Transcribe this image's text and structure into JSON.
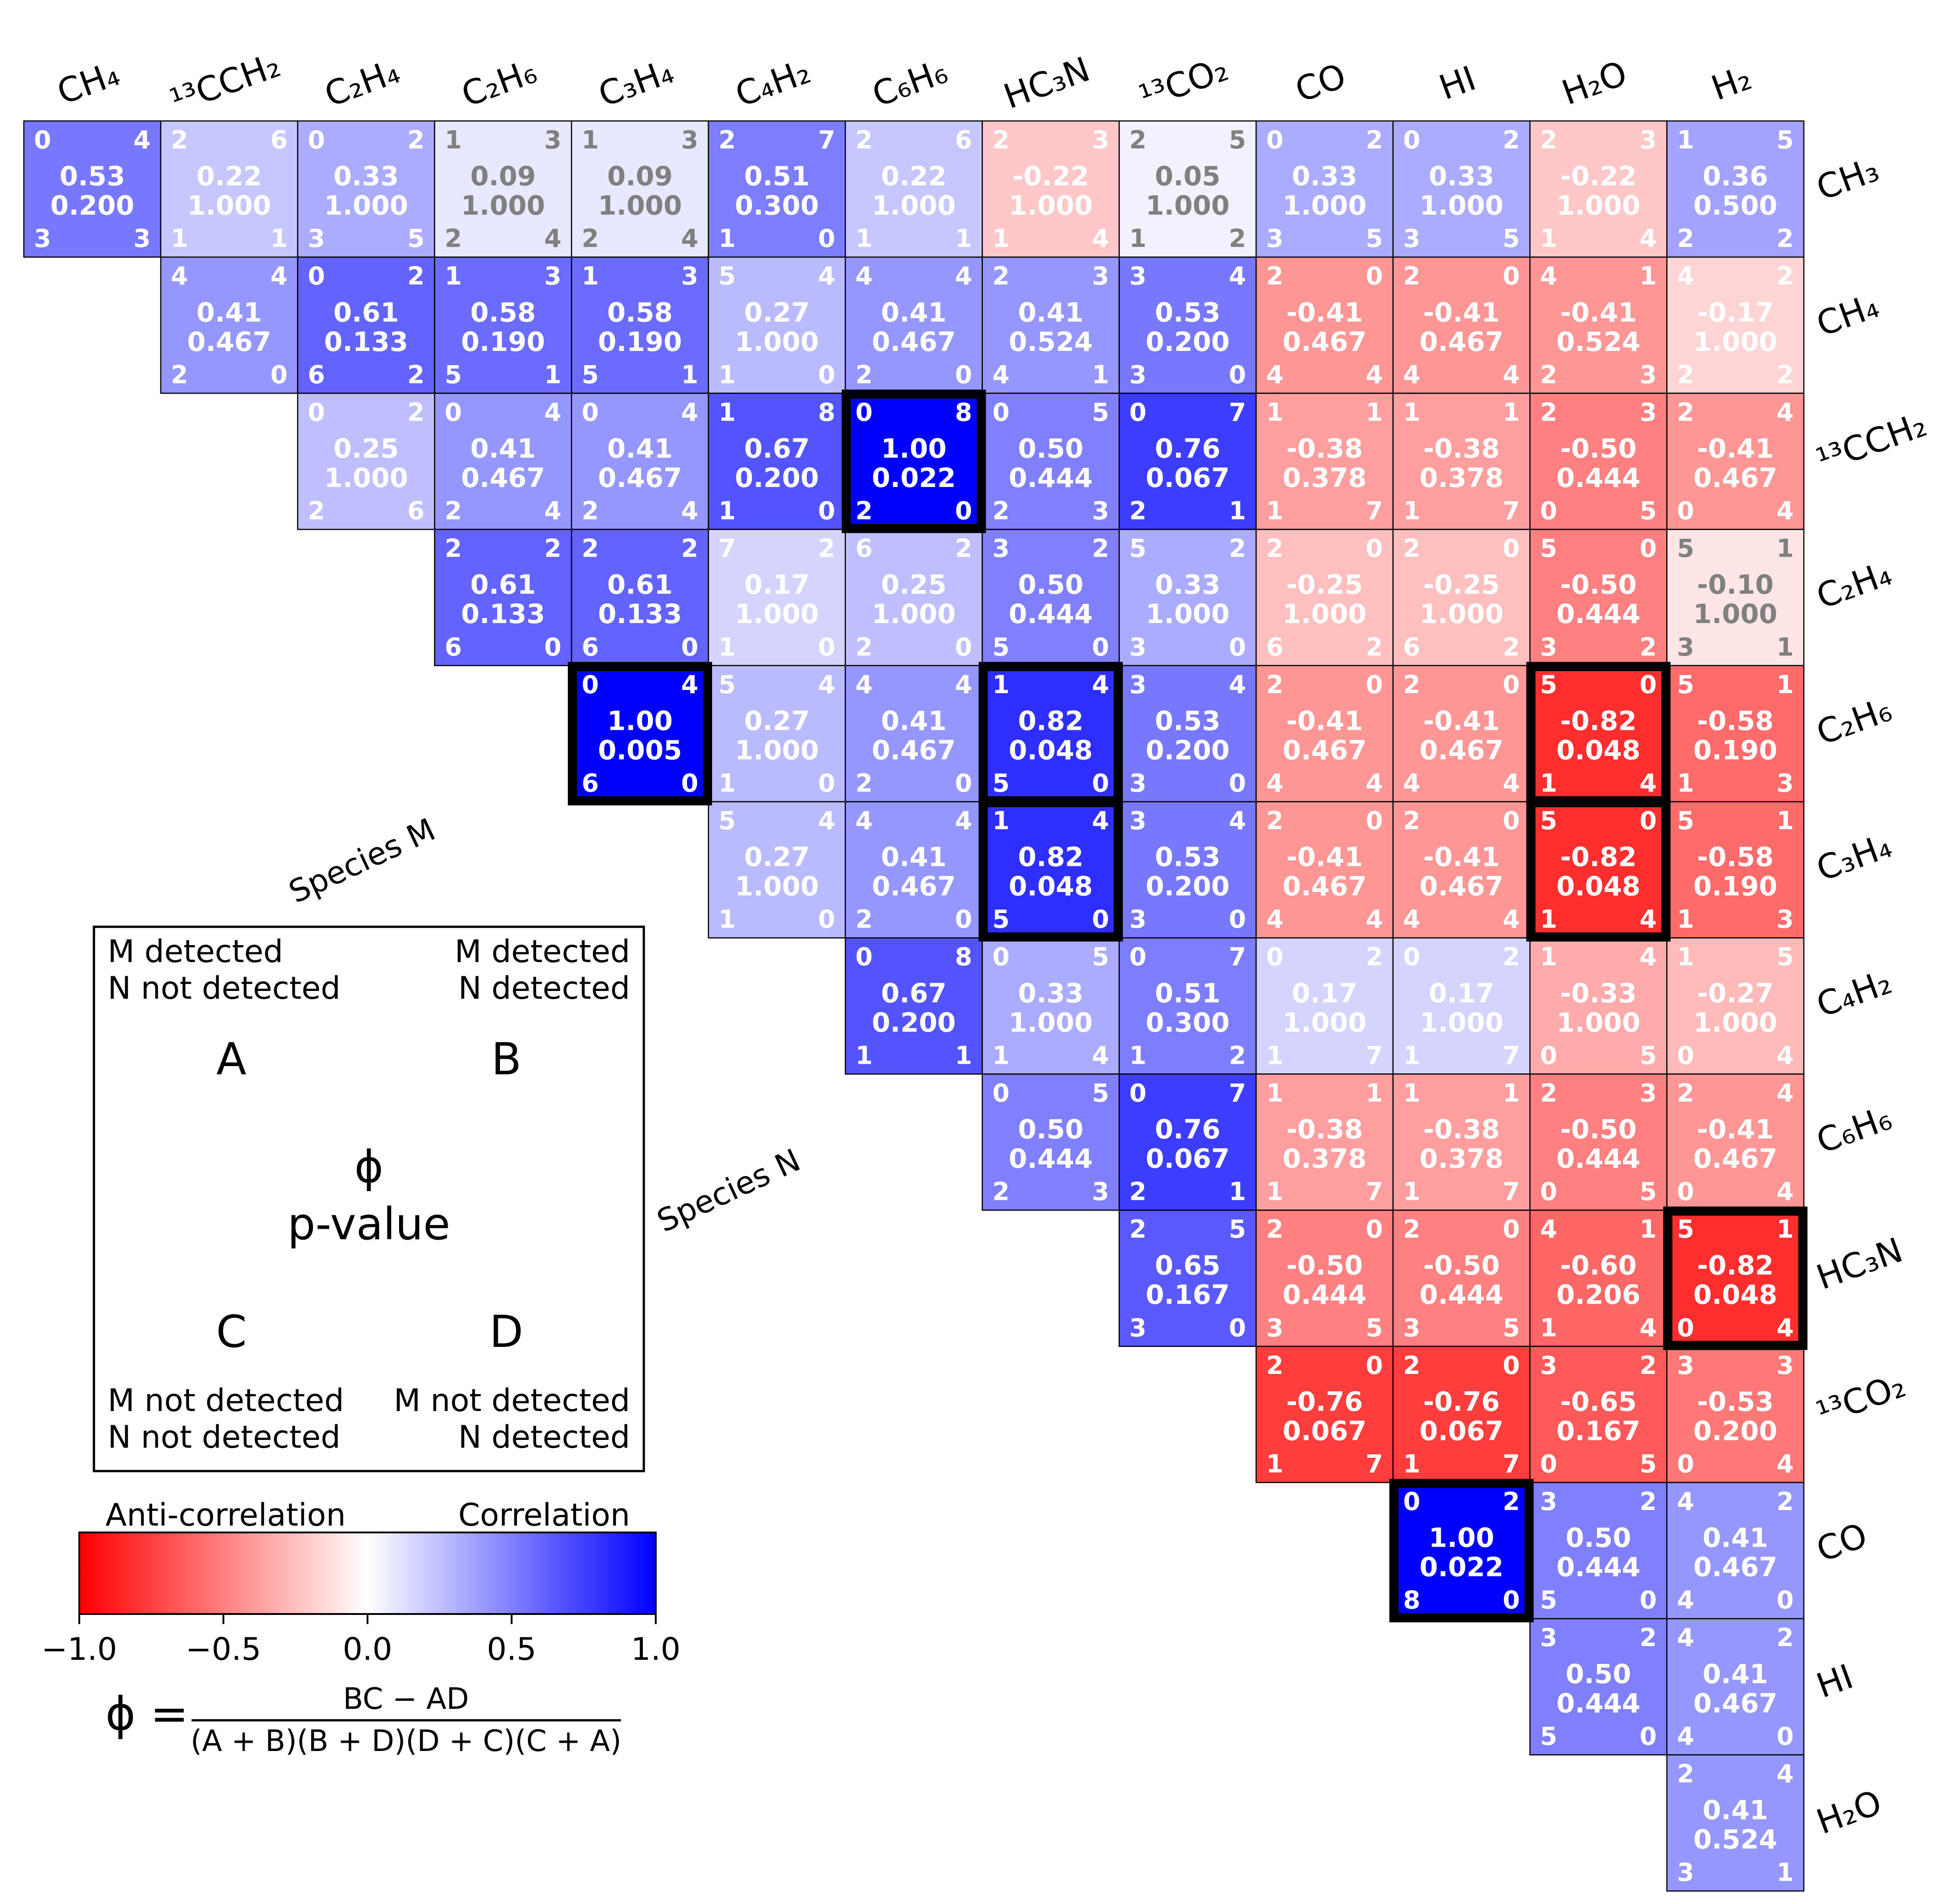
{
  "chart_data": {
    "type": "heatmap",
    "columns": [
      "CH₄",
      "¹³CCH₂",
      "C₂H₄",
      "C₂H₆",
      "C₃H₄",
      "C₄H₂",
      "C₆H₆",
      "HC₃N",
      "¹³CO₂",
      "CO",
      "HI",
      "H₂O",
      "H₂"
    ],
    "rows": [
      "CH₃",
      "CH₄",
      "¹³CCH₂",
      "C₂H₄",
      "C₂H₆",
      "C₃H₄",
      "C₄H₂",
      "C₆H₆",
      "HC₃N",
      "¹³CO₂",
      "CO",
      "HI",
      "H₂O"
    ],
    "cells": [
      [
        {
          "phi": "0.53",
          "p": "0.200",
          "a": "0",
          "b": "4",
          "c": "3",
          "d": "3"
        },
        {
          "phi": "0.22",
          "p": "1.000",
          "a": "2",
          "b": "6",
          "c": "1",
          "d": "1"
        },
        {
          "phi": "0.33",
          "p": "1.000",
          "a": "0",
          "b": "2",
          "c": "3",
          "d": "5"
        },
        {
          "phi": "0.09",
          "p": "1.000",
          "a": "1",
          "b": "3",
          "c": "2",
          "d": "4"
        },
        {
          "phi": "0.09",
          "p": "1.000",
          "a": "1",
          "b": "3",
          "c": "2",
          "d": "4"
        },
        {
          "phi": "0.51",
          "p": "0.300",
          "a": "2",
          "b": "7",
          "c": "1",
          "d": "0"
        },
        {
          "phi": "0.22",
          "p": "1.000",
          "a": "2",
          "b": "6",
          "c": "1",
          "d": "1"
        },
        {
          "phi": "-0.22",
          "p": "1.000",
          "a": "2",
          "b": "3",
          "c": "1",
          "d": "4"
        },
        {
          "phi": "0.05",
          "p": "1.000",
          "a": "2",
          "b": "5",
          "c": "1",
          "d": "2"
        },
        {
          "phi": "0.33",
          "p": "1.000",
          "a": "0",
          "b": "2",
          "c": "3",
          "d": "5"
        },
        {
          "phi": "0.33",
          "p": "1.000",
          "a": "0",
          "b": "2",
          "c": "3",
          "d": "5"
        },
        {
          "phi": "-0.22",
          "p": "1.000",
          "a": "2",
          "b": "3",
          "c": "1",
          "d": "4"
        },
        {
          "phi": "0.36",
          "p": "0.500",
          "a": "1",
          "b": "5",
          "c": "2",
          "d": "2"
        }
      ],
      [
        null,
        {
          "phi": "0.41",
          "p": "0.467",
          "a": "4",
          "b": "4",
          "c": "2",
          "d": "0"
        },
        {
          "phi": "0.61",
          "p": "0.133",
          "a": "0",
          "b": "2",
          "c": "6",
          "d": "2"
        },
        {
          "phi": "0.58",
          "p": "0.190",
          "a": "1",
          "b": "3",
          "c": "5",
          "d": "1"
        },
        {
          "phi": "0.58",
          "p": "0.190",
          "a": "1",
          "b": "3",
          "c": "5",
          "d": "1"
        },
        {
          "phi": "0.27",
          "p": "1.000",
          "a": "5",
          "b": "4",
          "c": "1",
          "d": "0"
        },
        {
          "phi": "0.41",
          "p": "0.467",
          "a": "4",
          "b": "4",
          "c": "2",
          "d": "0"
        },
        {
          "phi": "0.41",
          "p": "0.524",
          "a": "2",
          "b": "3",
          "c": "4",
          "d": "1"
        },
        {
          "phi": "0.53",
          "p": "0.200",
          "a": "3",
          "b": "4",
          "c": "3",
          "d": "0"
        },
        {
          "phi": "-0.41",
          "p": "0.467",
          "a": "2",
          "b": "0",
          "c": "4",
          "d": "4"
        },
        {
          "phi": "-0.41",
          "p": "0.467",
          "a": "2",
          "b": "0",
          "c": "4",
          "d": "4"
        },
        {
          "phi": "-0.41",
          "p": "0.524",
          "a": "4",
          "b": "1",
          "c": "2",
          "d": "3"
        },
        {
          "phi": "-0.17",
          "p": "1.000",
          "a": "4",
          "b": "2",
          "c": "2",
          "d": "2"
        }
      ],
      [
        null,
        null,
        {
          "phi": "0.25",
          "p": "1.000",
          "a": "0",
          "b": "2",
          "c": "2",
          "d": "6"
        },
        {
          "phi": "0.41",
          "p": "0.467",
          "a": "0",
          "b": "4",
          "c": "2",
          "d": "4"
        },
        {
          "phi": "0.41",
          "p": "0.467",
          "a": "0",
          "b": "4",
          "c": "2",
          "d": "4"
        },
        {
          "phi": "0.67",
          "p": "0.200",
          "a": "1",
          "b": "8",
          "c": "1",
          "d": "0"
        },
        {
          "phi": "1.00",
          "p": "0.022",
          "a": "0",
          "b": "8",
          "c": "2",
          "d": "0",
          "sig": true
        },
        {
          "phi": "0.50",
          "p": "0.444",
          "a": "0",
          "b": "5",
          "c": "2",
          "d": "3"
        },
        {
          "phi": "0.76",
          "p": "0.067",
          "a": "0",
          "b": "7",
          "c": "2",
          "d": "1"
        },
        {
          "phi": "-0.38",
          "p": "0.378",
          "a": "1",
          "b": "1",
          "c": "1",
          "d": "7"
        },
        {
          "phi": "-0.38",
          "p": "0.378",
          "a": "1",
          "b": "1",
          "c": "1",
          "d": "7"
        },
        {
          "phi": "-0.50",
          "p": "0.444",
          "a": "2",
          "b": "3",
          "c": "0",
          "d": "5"
        },
        {
          "phi": "-0.41",
          "p": "0.467",
          "a": "2",
          "b": "4",
          "c": "0",
          "d": "4"
        }
      ],
      [
        null,
        null,
        null,
        {
          "phi": "0.61",
          "p": "0.133",
          "a": "2",
          "b": "2",
          "c": "6",
          "d": "0"
        },
        {
          "phi": "0.61",
          "p": "0.133",
          "a": "2",
          "b": "2",
          "c": "6",
          "d": "0"
        },
        {
          "phi": "0.17",
          "p": "1.000",
          "a": "7",
          "b": "2",
          "c": "1",
          "d": "0"
        },
        {
          "phi": "0.25",
          "p": "1.000",
          "a": "6",
          "b": "2",
          "c": "2",
          "d": "0"
        },
        {
          "phi": "0.50",
          "p": "0.444",
          "a": "3",
          "b": "2",
          "c": "5",
          "d": "0"
        },
        {
          "phi": "0.33",
          "p": "1.000",
          "a": "5",
          "b": "2",
          "c": "3",
          "d": "0"
        },
        {
          "phi": "-0.25",
          "p": "1.000",
          "a": "2",
          "b": "0",
          "c": "6",
          "d": "2"
        },
        {
          "phi": "-0.25",
          "p": "1.000",
          "a": "2",
          "b": "0",
          "c": "6",
          "d": "2"
        },
        {
          "phi": "-0.50",
          "p": "0.444",
          "a": "5",
          "b": "0",
          "c": "3",
          "d": "2"
        },
        {
          "phi": "-0.10",
          "p": "1.000",
          "a": "5",
          "b": "1",
          "c": "3",
          "d": "1"
        }
      ],
      [
        null,
        null,
        null,
        null,
        {
          "phi": "1.00",
          "p": "0.005",
          "a": "0",
          "b": "4",
          "c": "6",
          "d": "0",
          "sig": true
        },
        {
          "phi": "0.27",
          "p": "1.000",
          "a": "5",
          "b": "4",
          "c": "1",
          "d": "0"
        },
        {
          "phi": "0.41",
          "p": "0.467",
          "a": "4",
          "b": "4",
          "c": "2",
          "d": "0"
        },
        {
          "phi": "0.82",
          "p": "0.048",
          "a": "1",
          "b": "4",
          "c": "5",
          "d": "0",
          "sig": true
        },
        {
          "phi": "0.53",
          "p": "0.200",
          "a": "3",
          "b": "4",
          "c": "3",
          "d": "0"
        },
        {
          "phi": "-0.41",
          "p": "0.467",
          "a": "2",
          "b": "0",
          "c": "4",
          "d": "4"
        },
        {
          "phi": "-0.41",
          "p": "0.467",
          "a": "2",
          "b": "0",
          "c": "4",
          "d": "4"
        },
        {
          "phi": "-0.82",
          "p": "0.048",
          "a": "5",
          "b": "0",
          "c": "1",
          "d": "4",
          "sig": true
        },
        {
          "phi": "-0.58",
          "p": "0.190",
          "a": "5",
          "b": "1",
          "c": "1",
          "d": "3"
        }
      ],
      [
        null,
        null,
        null,
        null,
        null,
        {
          "phi": "0.27",
          "p": "1.000",
          "a": "5",
          "b": "4",
          "c": "1",
          "d": "0"
        },
        {
          "phi": "0.41",
          "p": "0.467",
          "a": "4",
          "b": "4",
          "c": "2",
          "d": "0"
        },
        {
          "phi": "0.82",
          "p": "0.048",
          "a": "1",
          "b": "4",
          "c": "5",
          "d": "0",
          "sig": true
        },
        {
          "phi": "0.53",
          "p": "0.200",
          "a": "3",
          "b": "4",
          "c": "3",
          "d": "0"
        },
        {
          "phi": "-0.41",
          "p": "0.467",
          "a": "2",
          "b": "0",
          "c": "4",
          "d": "4"
        },
        {
          "phi": "-0.41",
          "p": "0.467",
          "a": "2",
          "b": "0",
          "c": "4",
          "d": "4"
        },
        {
          "phi": "-0.82",
          "p": "0.048",
          "a": "5",
          "b": "0",
          "c": "1",
          "d": "4",
          "sig": true
        },
        {
          "phi": "-0.58",
          "p": "0.190",
          "a": "5",
          "b": "1",
          "c": "1",
          "d": "3"
        }
      ],
      [
        null,
        null,
        null,
        null,
        null,
        null,
        {
          "phi": "0.67",
          "p": "0.200",
          "a": "0",
          "b": "8",
          "c": "1",
          "d": "1"
        },
        {
          "phi": "0.33",
          "p": "1.000",
          "a": "0",
          "b": "5",
          "c": "1",
          "d": "4"
        },
        {
          "phi": "0.51",
          "p": "0.300",
          "a": "0",
          "b": "7",
          "c": "1",
          "d": "2"
        },
        {
          "phi": "0.17",
          "p": "1.000",
          "a": "0",
          "b": "2",
          "c": "1",
          "d": "7"
        },
        {
          "phi": "0.17",
          "p": "1.000",
          "a": "0",
          "b": "2",
          "c": "1",
          "d": "7"
        },
        {
          "phi": "-0.33",
          "p": "1.000",
          "a": "1",
          "b": "4",
          "c": "0",
          "d": "5"
        },
        {
          "phi": "-0.27",
          "p": "1.000",
          "a": "1",
          "b": "5",
          "c": "0",
          "d": "4"
        }
      ],
      [
        null,
        null,
        null,
        null,
        null,
        null,
        null,
        {
          "phi": "0.50",
          "p": "0.444",
          "a": "0",
          "b": "5",
          "c": "2",
          "d": "3"
        },
        {
          "phi": "0.76",
          "p": "0.067",
          "a": "0",
          "b": "7",
          "c": "2",
          "d": "1"
        },
        {
          "phi": "-0.38",
          "p": "0.378",
          "a": "1",
          "b": "1",
          "c": "1",
          "d": "7"
        },
        {
          "phi": "-0.38",
          "p": "0.378",
          "a": "1",
          "b": "1",
          "c": "1",
          "d": "7"
        },
        {
          "phi": "-0.50",
          "p": "0.444",
          "a": "2",
          "b": "3",
          "c": "0",
          "d": "5"
        },
        {
          "phi": "-0.41",
          "p": "0.467",
          "a": "2",
          "b": "4",
          "c": "0",
          "d": "4"
        }
      ],
      [
        null,
        null,
        null,
        null,
        null,
        null,
        null,
        null,
        {
          "phi": "0.65",
          "p": "0.167",
          "a": "2",
          "b": "5",
          "c": "3",
          "d": "0"
        },
        {
          "phi": "-0.50",
          "p": "0.444",
          "a": "2",
          "b": "0",
          "c": "3",
          "d": "5"
        },
        {
          "phi": "-0.50",
          "p": "0.444",
          "a": "2",
          "b": "0",
          "c": "3",
          "d": "5"
        },
        {
          "phi": "-0.60",
          "p": "0.206",
          "a": "4",
          "b": "1",
          "c": "1",
          "d": "4"
        },
        {
          "phi": "-0.82",
          "p": "0.048",
          "a": "5",
          "b": "1",
          "c": "0",
          "d": "4",
          "sig": true
        }
      ],
      [
        null,
        null,
        null,
        null,
        null,
        null,
        null,
        null,
        null,
        {
          "phi": "-0.76",
          "p": "0.067",
          "a": "2",
          "b": "0",
          "c": "1",
          "d": "7"
        },
        {
          "phi": "-0.76",
          "p": "0.067",
          "a": "2",
          "b": "0",
          "c": "1",
          "d": "7"
        },
        {
          "phi": "-0.65",
          "p": "0.167",
          "a": "3",
          "b": "2",
          "c": "0",
          "d": "5"
        },
        {
          "phi": "-0.53",
          "p": "0.200",
          "a": "3",
          "b": "3",
          "c": "0",
          "d": "4"
        }
      ],
      [
        null,
        null,
        null,
        null,
        null,
        null,
        null,
        null,
        null,
        null,
        {
          "phi": "1.00",
          "p": "0.022",
          "a": "0",
          "b": "2",
          "c": "8",
          "d": "0",
          "sig": true
        },
        {
          "phi": "0.50",
          "p": "0.444",
          "a": "3",
          "b": "2",
          "c": "5",
          "d": "0"
        },
        {
          "phi": "0.41",
          "p": "0.467",
          "a": "4",
          "b": "2",
          "c": "4",
          "d": "0"
        }
      ],
      [
        null,
        null,
        null,
        null,
        null,
        null,
        null,
        null,
        null,
        null,
        null,
        {
          "phi": "0.50",
          "p": "0.444",
          "a": "3",
          "b": "2",
          "c": "5",
          "d": "0"
        },
        {
          "phi": "0.41",
          "p": "0.467",
          "a": "4",
          "b": "2",
          "c": "4",
          "d": "0"
        }
      ],
      [
        null,
        null,
        null,
        null,
        null,
        null,
        null,
        null,
        null,
        null,
        null,
        null,
        {
          "phi": "0.41",
          "p": "0.524",
          "a": "2",
          "b": "4",
          "c": "3",
          "d": "1"
        }
      ]
    ],
    "colormap": {
      "min": -1.0,
      "max": 1.0,
      "negative_color": "#ff0000",
      "mid_color": "#ffffff",
      "positive_color": "#0000ff"
    },
    "colorbar_ticks": [
      "−1.0",
      "−0.5",
      "0.0",
      "0.5",
      "1.0"
    ],
    "colorbar_tick_values": [
      -1.0,
      -0.5,
      0.0,
      0.5,
      1.0
    ],
    "colorbar_label_left": "Anti-correlation",
    "colorbar_label_right": "Correlation",
    "species_m_label": "Species M",
    "species_n_label": "Species N",
    "legend": {
      "top_left": [
        "M detected",
        "N not detected"
      ],
      "top_right": [
        "M detected",
        "N detected"
      ],
      "bottom_left": [
        "M not detected",
        "N not detected"
      ],
      "bottom_right": [
        "M not detected",
        "N detected"
      ],
      "letter_a": "A",
      "letter_b": "B",
      "letter_c": "C",
      "letter_d": "D",
      "phi_symbol": "ϕ",
      "p_value_label": "p-value"
    },
    "formula": {
      "lhs": "ϕ =",
      "numerator": "BC − AD",
      "denominator": "(A + B)(B + D)(D + C)(C + A)"
    }
  }
}
